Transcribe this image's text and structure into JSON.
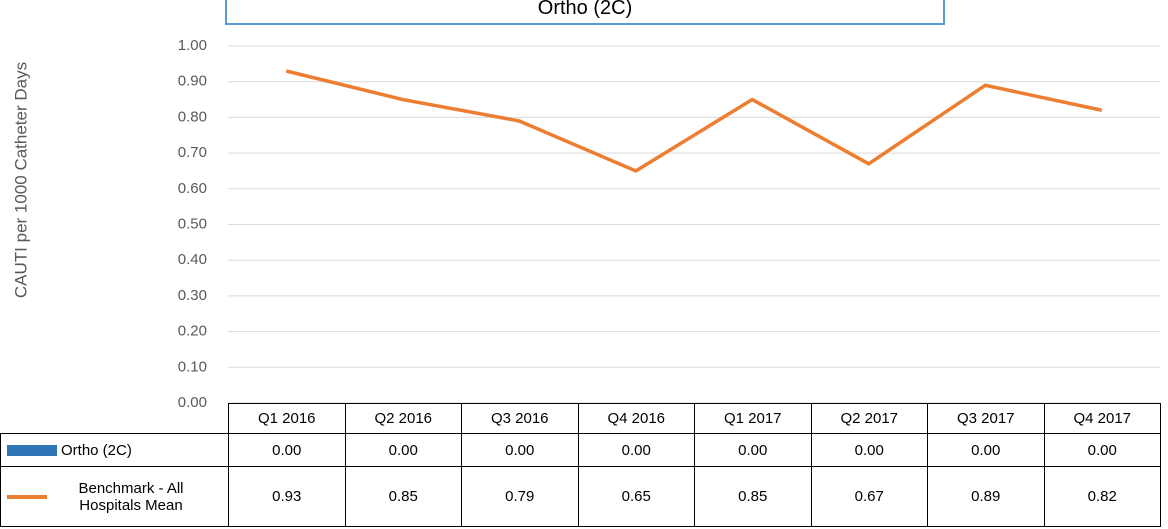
{
  "chart_data": {
    "type": "line",
    "title": "Ortho (2C)",
    "y_label": "CAUTI per 1000 Catheter Days",
    "categories": [
      "Q1 2016",
      "Q2 2016",
      "Q3 2016",
      "Q4 2016",
      "Q1 2017",
      "Q2 2017",
      "Q3 2017",
      "Q4 2017"
    ],
    "series": [
      {
        "name": "Ortho (2C)",
        "type": "bar",
        "color": "#2e75b6",
        "values": [
          0,
          0,
          0,
          0,
          0,
          0,
          0,
          0
        ],
        "value_labels": [
          "0.00",
          "0.00",
          "0.00",
          "0.00",
          "0.00",
          "0.00",
          "0.00",
          "0.00"
        ]
      },
      {
        "name": "Benchmark - All Hospitals Mean",
        "type": "line",
        "color": "#ed7d31",
        "values": [
          0.93,
          0.85,
          0.79,
          0.65,
          0.85,
          0.67,
          0.89,
          0.82
        ],
        "value_labels": [
          "0.93",
          "0.85",
          "0.79",
          "0.65",
          "0.85",
          "0.67",
          "0.89",
          "0.82"
        ]
      }
    ],
    "ylim": [
      0,
      1
    ],
    "yticks": [
      {
        "value": 0,
        "label": "0.00"
      },
      {
        "value": 0.1,
        "label": "0.10"
      },
      {
        "value": 0.2,
        "label": "0.20"
      },
      {
        "value": 0.3,
        "label": "0.30"
      },
      {
        "value": 0.4,
        "label": "0.40"
      },
      {
        "value": 0.5,
        "label": "0.50"
      },
      {
        "value": 0.6,
        "label": "0.60"
      },
      {
        "value": 0.7,
        "label": "0.70"
      },
      {
        "value": 0.8,
        "label": "0.80"
      },
      {
        "value": 0.9,
        "label": "0.90"
      },
      {
        "value": 1,
        "label": "1.00"
      }
    ],
    "grid": true
  }
}
